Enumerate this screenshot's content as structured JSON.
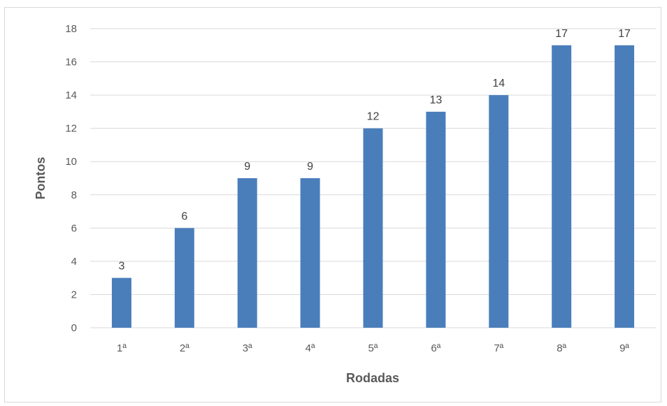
{
  "chart_data": {
    "type": "bar",
    "categories": [
      "1ª",
      "2ª",
      "3ª",
      "4ª",
      "5ª",
      "6ª",
      "7ª",
      "8ª",
      "9ª"
    ],
    "values": [
      3,
      6,
      9,
      9,
      12,
      13,
      14,
      17,
      17
    ],
    "xlabel": "Rodadas",
    "ylabel": "Pontos",
    "ylim": [
      0,
      18
    ],
    "yticks": [
      0,
      2,
      4,
      6,
      8,
      10,
      12,
      14,
      16,
      18
    ],
    "grid": true,
    "data_labels": true,
    "bar_color": "#4a7ebb",
    "grid_color": "#d9d9d9"
  }
}
